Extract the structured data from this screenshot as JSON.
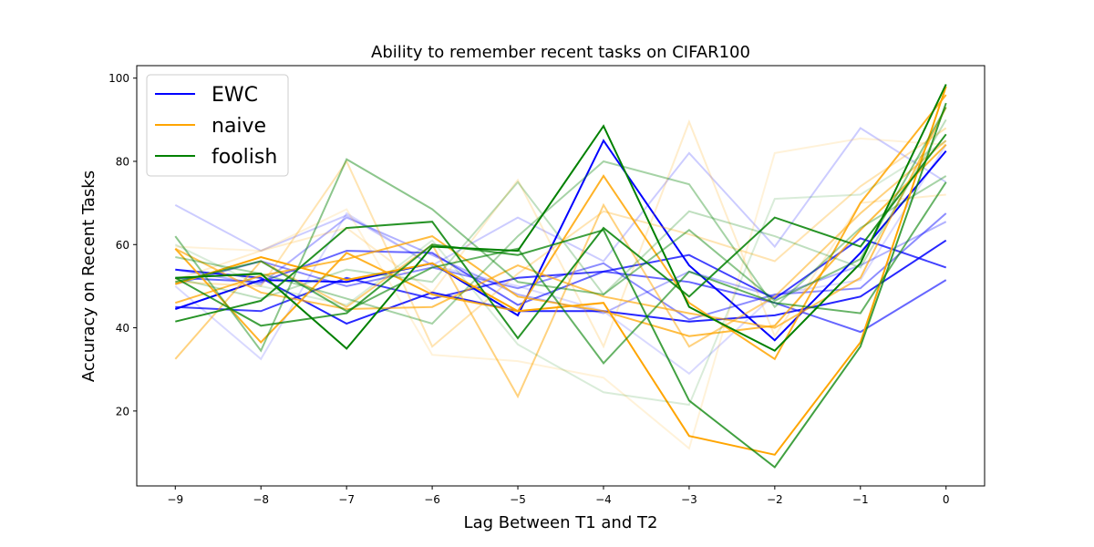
{
  "chart_data": {
    "type": "line",
    "title": "Ability to remember recent tasks on CIFAR100",
    "xlabel": "Lag Between T1 and T2",
    "ylabel": "Accuracy on Recent Tasks",
    "x": [
      -9,
      -8,
      -7,
      -6,
      -5,
      -4,
      -3,
      -2,
      -1,
      0
    ],
    "xlim": [
      -9.45,
      0.45
    ],
    "ylim": [
      2,
      103
    ],
    "xticks": [
      -9,
      -8,
      -7,
      -6,
      -5,
      -4,
      -3,
      -2,
      -1,
      0
    ],
    "yticks": [
      20,
      40,
      60,
      80,
      100
    ],
    "grid": false,
    "legend": {
      "placement": "top-left",
      "entries": [
        {
          "label": "EWC",
          "color": "#0000ff"
        },
        {
          "label": "naive",
          "color": "#ffa500"
        },
        {
          "label": "foolish",
          "color": "#008000"
        }
      ]
    },
    "series": [
      {
        "group": "EWC",
        "color": "#0000ff",
        "opacity": 0.2,
        "values": [
          69.5,
          58.5,
          67,
          55,
          66.5,
          56,
          82,
          59.5,
          88,
          75
        ]
      },
      {
        "group": "EWC",
        "color": "#0000ff",
        "opacity": 0.15,
        "values": [
          50,
          32.5,
          67.5,
          55,
          50,
          44,
          29,
          48,
          51.5,
          84
        ]
      },
      {
        "group": "EWC",
        "color": "#0000ff",
        "opacity": 0.3,
        "values": [
          54,
          50.5,
          66.5,
          57.5,
          48,
          43.5,
          53.5,
          47.5,
          55,
          65.5
        ]
      },
      {
        "group": "EWC",
        "color": "#0000ff",
        "opacity": 0.45,
        "values": [
          50.5,
          56,
          50,
          54.5,
          49.5,
          55.5,
          42,
          48,
          49.5,
          67.5
        ]
      },
      {
        "group": "EWC",
        "color": "#0000ff",
        "opacity": 0.6,
        "values": [
          52,
          51,
          58.5,
          58,
          45.5,
          53.5,
          51,
          46,
          39,
          51.5
        ]
      },
      {
        "group": "EWC",
        "color": "#0000ff",
        "opacity": 0.75,
        "values": [
          45,
          44,
          52,
          47,
          52,
          53.5,
          57.5,
          47,
          61.5,
          54.5
        ]
      },
      {
        "group": "EWC",
        "color": "#0000ff",
        "opacity": 0.85,
        "values": [
          54,
          52,
          41,
          48.5,
          44,
          44,
          41.5,
          43,
          47.5,
          61
        ]
      },
      {
        "group": "EWC",
        "color": "#0000ff",
        "opacity": 1.0,
        "values": [
          44.5,
          51.5,
          51,
          55.5,
          43,
          85,
          55,
          37,
          58,
          82.5
        ]
      },
      {
        "group": "naive",
        "color": "#ffa500",
        "opacity": 0.15,
        "values": [
          59.5,
          58.5,
          68.5,
          33.5,
          32,
          28,
          11,
          82,
          85.5,
          84
        ]
      },
      {
        "group": "naive",
        "color": "#ffa500",
        "opacity": 0.2,
        "values": [
          51.5,
          58.5,
          64,
          48.5,
          75.5,
          35.5,
          89.5,
          38,
          70,
          72
        ]
      },
      {
        "group": "naive",
        "color": "#ffa500",
        "opacity": 0.3,
        "values": [
          51,
          50,
          80,
          35.5,
          53,
          68,
          62.5,
          56,
          74,
          88
        ]
      },
      {
        "group": "naive",
        "color": "#ffa500",
        "opacity": 0.5,
        "values": [
          32.5,
          56,
          45,
          60,
          23.5,
          69.5,
          35.5,
          47.5,
          67.5,
          85
        ]
      },
      {
        "group": "naive",
        "color": "#ffa500",
        "opacity": 0.65,
        "values": [
          59,
          48.5,
          44.5,
          45,
          55,
          47.5,
          43.5,
          40,
          52,
          93
        ]
      },
      {
        "group": "naive",
        "color": "#ffa500",
        "opacity": 0.75,
        "values": [
          46,
          52.5,
          56.5,
          62,
          47.5,
          44,
          38,
          40.5,
          63.5,
          84
        ]
      },
      {
        "group": "naive",
        "color": "#ffa500",
        "opacity": 0.85,
        "values": [
          59,
          36.5,
          58,
          48,
          44,
          76.5,
          46,
          32.5,
          70,
          96
        ]
      },
      {
        "group": "naive",
        "color": "#ffa500",
        "opacity": 1.0,
        "values": [
          50.5,
          57,
          51.5,
          55.5,
          44,
          46,
          14,
          9.5,
          36.5,
          98
        ]
      },
      {
        "group": "foolish",
        "color": "#008000",
        "opacity": 0.15,
        "values": [
          60,
          50,
          45.5,
          61,
          36,
          24.5,
          21.5,
          71,
          72,
          85
        ]
      },
      {
        "group": "foolish",
        "color": "#008000",
        "opacity": 0.25,
        "values": [
          52,
          47,
          54,
          51,
          75,
          48,
          68,
          62,
          54.5,
          90
        ]
      },
      {
        "group": "foolish",
        "color": "#008000",
        "opacity": 0.35,
        "values": [
          57,
          53,
          47,
          41,
          62,
          80,
          74.5,
          45,
          64,
          76.5
        ]
      },
      {
        "group": "foolish",
        "color": "#008000",
        "opacity": 0.45,
        "values": [
          62,
          34.5,
          80.5,
          68.5,
          51,
          48,
          63.5,
          46.5,
          56.5,
          93
        ]
      },
      {
        "group": "foolish",
        "color": "#008000",
        "opacity": 0.6,
        "values": [
          51,
          56,
          44,
          54.5,
          59,
          31.5,
          53.5,
          46,
          43.5,
          75
        ]
      },
      {
        "group": "foolish",
        "color": "#008000",
        "opacity": 0.75,
        "values": [
          52,
          40.5,
          43.5,
          60,
          57.5,
          63.5,
          22.5,
          6.5,
          35.5,
          94
        ]
      },
      {
        "group": "foolish",
        "color": "#008000",
        "opacity": 0.85,
        "values": [
          41.5,
          46.5,
          64,
          65.5,
          37.5,
          64,
          47.5,
          66.5,
          59.5,
          86.5
        ]
      },
      {
        "group": "foolish",
        "color": "#008000",
        "opacity": 1.0,
        "values": [
          52,
          53,
          35,
          59.5,
          58.5,
          88.5,
          45,
          34.5,
          55.5,
          98.5
        ]
      }
    ]
  }
}
